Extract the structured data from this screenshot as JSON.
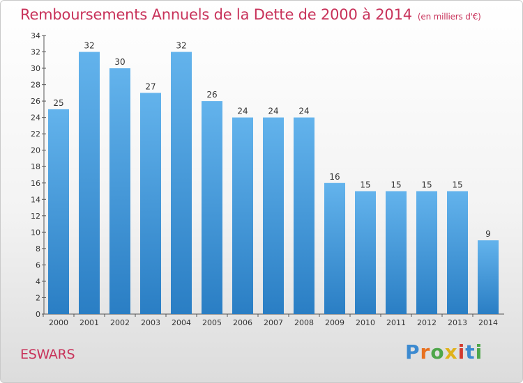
{
  "header": {
    "title": "Remboursements Annuels de la Dette de 2000 à 2014",
    "unit": "(en milliers d'€)"
  },
  "footer": {
    "city": "ESWARS",
    "logo_text": "Proxiti"
  },
  "colors": {
    "title": "#c8325a",
    "bar_top": "#63b3ec",
    "bar_bottom": "#2a7ec4",
    "logo": [
      "#3c8ad0",
      "#e8711f",
      "#4ea64a",
      "#e0b21a",
      "#d23a2f",
      "#3c8ad0",
      "#4ea64a"
    ]
  },
  "chart_data": {
    "type": "bar",
    "categories": [
      "2000",
      "2001",
      "2002",
      "2003",
      "2004",
      "2005",
      "2006",
      "2007",
      "2008",
      "2009",
      "2010",
      "2011",
      "2012",
      "2013",
      "2014"
    ],
    "values": [
      25,
      32,
      30,
      27,
      32,
      26,
      24,
      24,
      24,
      16,
      15,
      15,
      15,
      15,
      9
    ],
    "ylim": [
      0,
      34
    ],
    "yticks": [
      0,
      2,
      4,
      6,
      8,
      10,
      12,
      14,
      16,
      18,
      20,
      22,
      24,
      26,
      28,
      30,
      32,
      34
    ],
    "xlabel": "",
    "ylabel": "",
    "grid": false,
    "data_labels": true
  }
}
